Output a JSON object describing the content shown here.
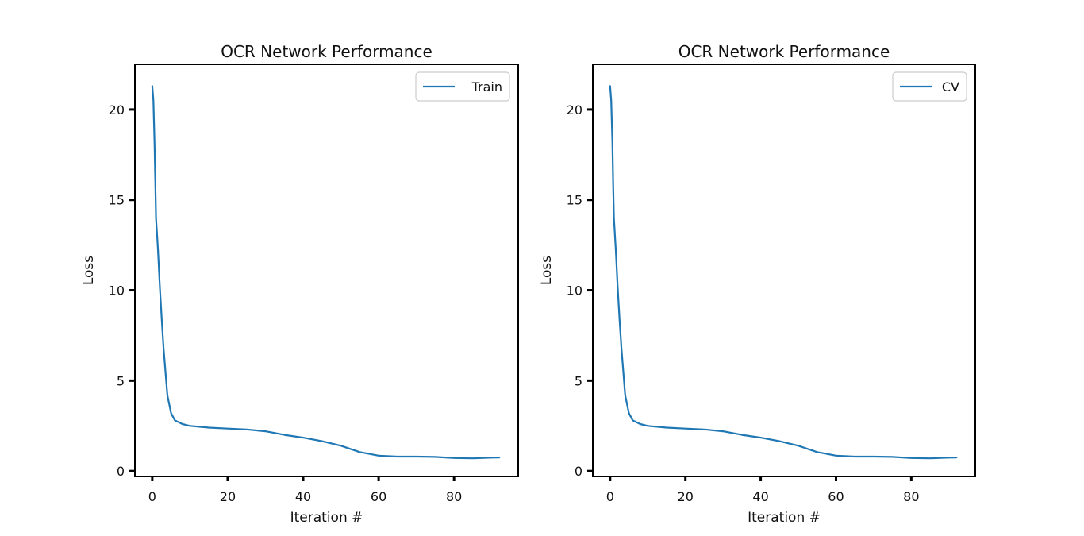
{
  "chart_data": [
    {
      "type": "line",
      "title": "OCR Network Performance",
      "xlabel": "Iteration #",
      "ylabel": "Loss",
      "xlim": [
        -4.6,
        97
      ],
      "ylim": [
        -0.3,
        22.5
      ],
      "xticks": [
        0,
        20,
        40,
        60,
        80
      ],
      "yticks": [
        0,
        5,
        10,
        15,
        20
      ],
      "grid": false,
      "legend_position": "top-right",
      "colors": {
        "series": "#1f77b4"
      },
      "series": [
        {
          "name": "Train",
          "x": [
            0,
            0.3,
            0.6,
            0.8,
            1,
            1.5,
            2,
            2.5,
            3,
            4,
            5,
            6,
            8,
            10,
            15,
            20,
            25,
            30,
            35,
            40,
            45,
            50,
            55,
            60,
            65,
            70,
            75,
            80,
            85,
            90,
            92
          ],
          "y": [
            21.3,
            20.5,
            18.2,
            16,
            14,
            12.3,
            10.2,
            8.4,
            6.8,
            4.2,
            3.2,
            2.8,
            2.6,
            2.5,
            2.4,
            2.35,
            2.3,
            2.2,
            2.0,
            1.85,
            1.65,
            1.4,
            1.05,
            0.85,
            0.8,
            0.8,
            0.78,
            0.72,
            0.7,
            0.74,
            0.75
          ]
        }
      ]
    },
    {
      "type": "line",
      "title": "OCR Network Performance",
      "xlabel": "Iteration #",
      "ylabel": "Loss",
      "xlim": [
        -4.6,
        97
      ],
      "ylim": [
        -0.3,
        22.5
      ],
      "xticks": [
        0,
        20,
        40,
        60,
        80
      ],
      "yticks": [
        0,
        5,
        10,
        15,
        20
      ],
      "grid": false,
      "legend_position": "top-right",
      "colors": {
        "series": "#1f77b4"
      },
      "series": [
        {
          "name": "CV",
          "x": [
            0,
            0.3,
            0.6,
            0.8,
            1,
            1.5,
            2,
            2.5,
            3,
            4,
            5,
            6,
            8,
            10,
            15,
            20,
            25,
            30,
            35,
            40,
            45,
            50,
            55,
            60,
            65,
            70,
            75,
            80,
            85,
            90,
            92
          ],
          "y": [
            21.3,
            20.5,
            18.2,
            16,
            14,
            12.3,
            10.2,
            8.4,
            6.8,
            4.2,
            3.2,
            2.8,
            2.6,
            2.5,
            2.4,
            2.35,
            2.3,
            2.2,
            2.0,
            1.85,
            1.65,
            1.4,
            1.05,
            0.85,
            0.8,
            0.8,
            0.78,
            0.72,
            0.7,
            0.74,
            0.75
          ]
        }
      ]
    }
  ]
}
